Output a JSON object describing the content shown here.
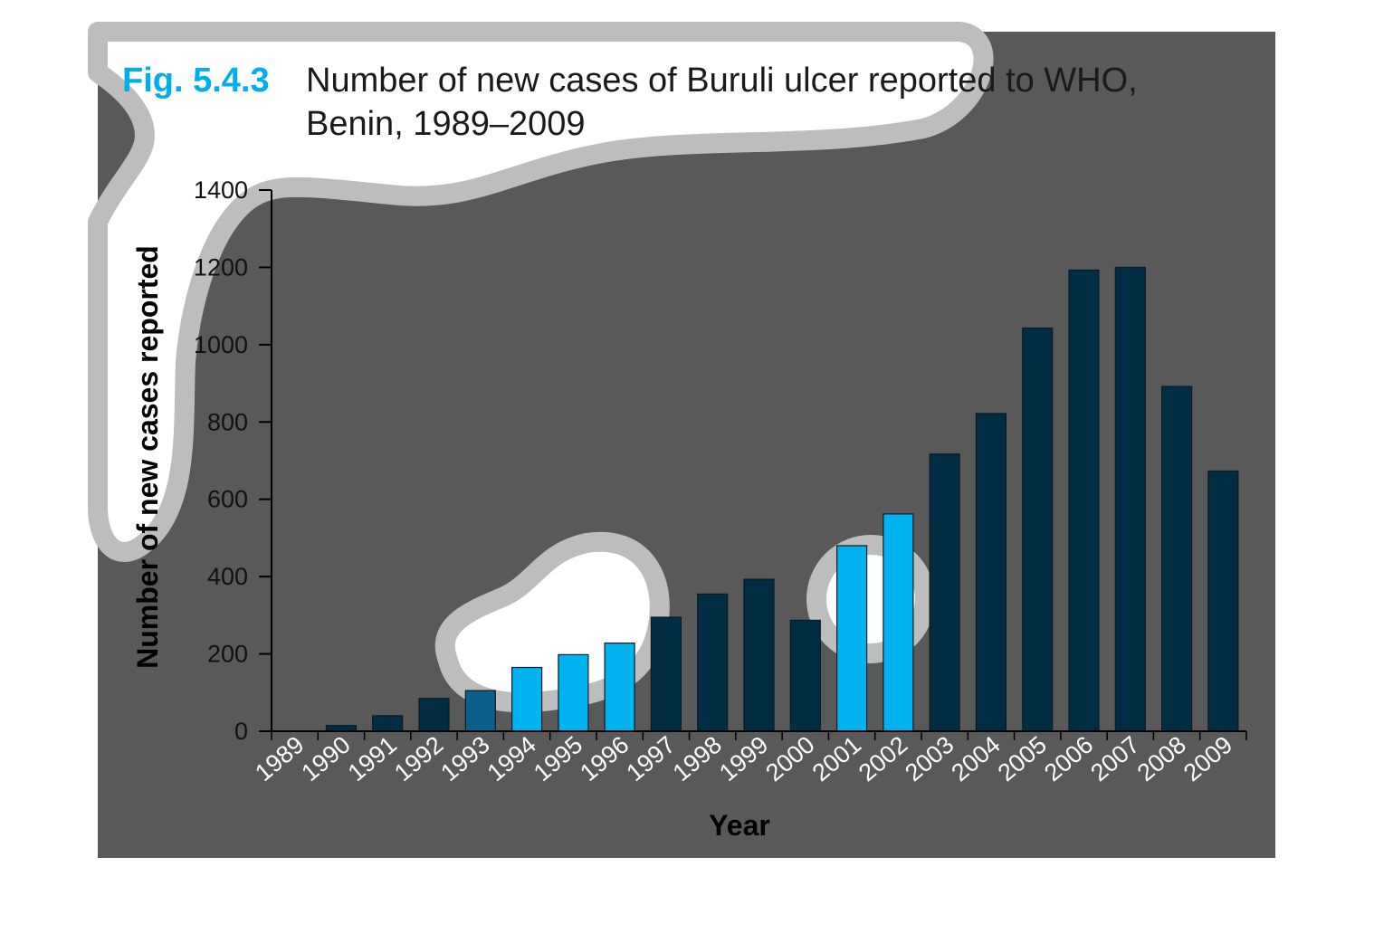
{
  "colors": {
    "panel": "#595959",
    "bar": "#002d44",
    "bar_stroke": "#0b1a24",
    "highlight": "#00b2f0",
    "axis": "#000000",
    "blob_fill": "#ffffff",
    "blob_border": "#bdbdbd",
    "figure_label": "#00aeef"
  },
  "figure": {
    "label": "Fig. 5.4.3",
    "title_line1": "Number of new cases of Buruli ulcer reported to WHO,",
    "title_line2": "Benin, 1989–2009"
  },
  "chart_data": {
    "type": "bar",
    "title": "Number of new cases of Buruli ulcer reported to WHO, Benin, 1989–2009",
    "xlabel": "Year",
    "ylabel": "Number of new cases reported",
    "ylim": [
      0,
      1400
    ],
    "yticks": [
      0,
      200,
      400,
      600,
      800,
      1000,
      1200,
      1400
    ],
    "grid": false,
    "categories": [
      "1989",
      "1990",
      "1991",
      "1992",
      "1993",
      "1994",
      "1995",
      "1996",
      "1997",
      "1998",
      "1999",
      "2000",
      "2001",
      "2002",
      "2003",
      "2004",
      "2005",
      "2006",
      "2007",
      "2008",
      "2009"
    ],
    "values": [
      0,
      15,
      40,
      85,
      105,
      165,
      198,
      228,
      295,
      355,
      393,
      287,
      480,
      562,
      717,
      822,
      1043,
      1193,
      1200,
      892,
      673
    ]
  }
}
